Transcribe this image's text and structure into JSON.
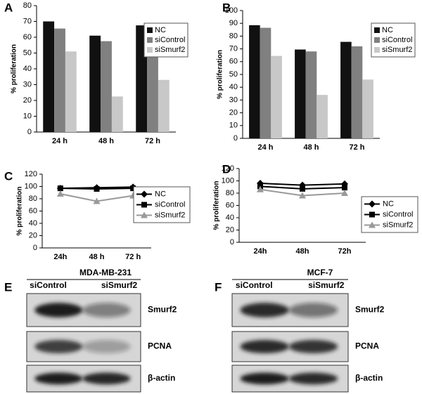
{
  "chart_data": [
    {
      "type": "bar",
      "panel": "A",
      "y_label": "% proliferation",
      "categories": [
        "24 h",
        "48 h",
        "72 h"
      ],
      "series": [
        {
          "name": "NC",
          "color": "#111111",
          "values": [
            70,
            61,
            67.5
          ]
        },
        {
          "name": "siControl",
          "color": "#808080",
          "values": [
            65.5,
            57.5,
            62
          ]
        },
        {
          "name": "siSmurf2",
          "color": "#c8c8c8",
          "values": [
            51,
            22.5,
            33
          ]
        }
      ],
      "ylim": [
        0,
        80
      ],
      "yticks": [
        0,
        10,
        20,
        30,
        40,
        50,
        60,
        70,
        80
      ],
      "legend": "upper right"
    },
    {
      "type": "bar",
      "panel": "B",
      "y_label": "% proliferation",
      "categories": [
        "24 h",
        "48 h",
        "72 h"
      ],
      "series": [
        {
          "name": "NC",
          "color": "#111111",
          "values": [
            88.5,
            69.5,
            75.5
          ]
        },
        {
          "name": "siControl",
          "color": "#808080",
          "values": [
            86.5,
            68,
            72
          ]
        },
        {
          "name": "siSmurf2",
          "color": "#c8c8c8",
          "values": [
            64.5,
            34,
            46
          ]
        }
      ],
      "ylim": [
        0,
        100
      ],
      "yticks": [
        0,
        10,
        20,
        30,
        40,
        50,
        60,
        70,
        80,
        90,
        100
      ],
      "legend": "upper right"
    },
    {
      "type": "line",
      "panel": "C",
      "y_label": "% proliferation",
      "categories": [
        "24h",
        "48 h",
        "72 h"
      ],
      "series": [
        {
          "name": "NC",
          "color": "#000000",
          "marker": "diamond",
          "values": [
            97,
            98,
            99
          ]
        },
        {
          "name": "siControl",
          "color": "#000000",
          "marker": "square",
          "values": [
            97,
            96,
            97
          ]
        },
        {
          "name": "siSmurf2",
          "color": "#999999",
          "marker": "triangle",
          "values": [
            88,
            76,
            85
          ]
        }
      ],
      "ylim": [
        0,
        120
      ],
      "yticks": [
        0,
        20,
        40,
        60,
        80,
        100,
        120
      ],
      "legend": "right"
    },
    {
      "type": "line",
      "panel": "D",
      "y_label": "% proliferation",
      "categories": [
        "24h",
        "48h",
        "72h"
      ],
      "series": [
        {
          "name": "NC",
          "color": "#000000",
          "marker": "diamond",
          "values": [
            96,
            93,
            95
          ]
        },
        {
          "name": "siControl",
          "color": "#000000",
          "marker": "square",
          "values": [
            91,
            87,
            89
          ]
        },
        {
          "name": "siSmurf2",
          "color": "#999999",
          "marker": "triangle",
          "values": [
            86,
            76,
            80
          ]
        }
      ],
      "ylim": [
        0,
        120
      ],
      "yticks": [
        0,
        20,
        40,
        60,
        80,
        100,
        120
      ],
      "legend": "right"
    }
  ],
  "blots": [
    {
      "panel": "E",
      "title": "MDA-MB-231",
      "columns": [
        "siControl",
        "siSmurf2"
      ],
      "rows": [
        "Smurf2",
        "PCNA",
        "β-actin"
      ]
    },
    {
      "panel": "F",
      "title": "MCF-7",
      "columns": [
        "siControl",
        "siSmurf2"
      ],
      "rows": [
        "Smurf2",
        "PCNA",
        "β-actin"
      ]
    }
  ]
}
